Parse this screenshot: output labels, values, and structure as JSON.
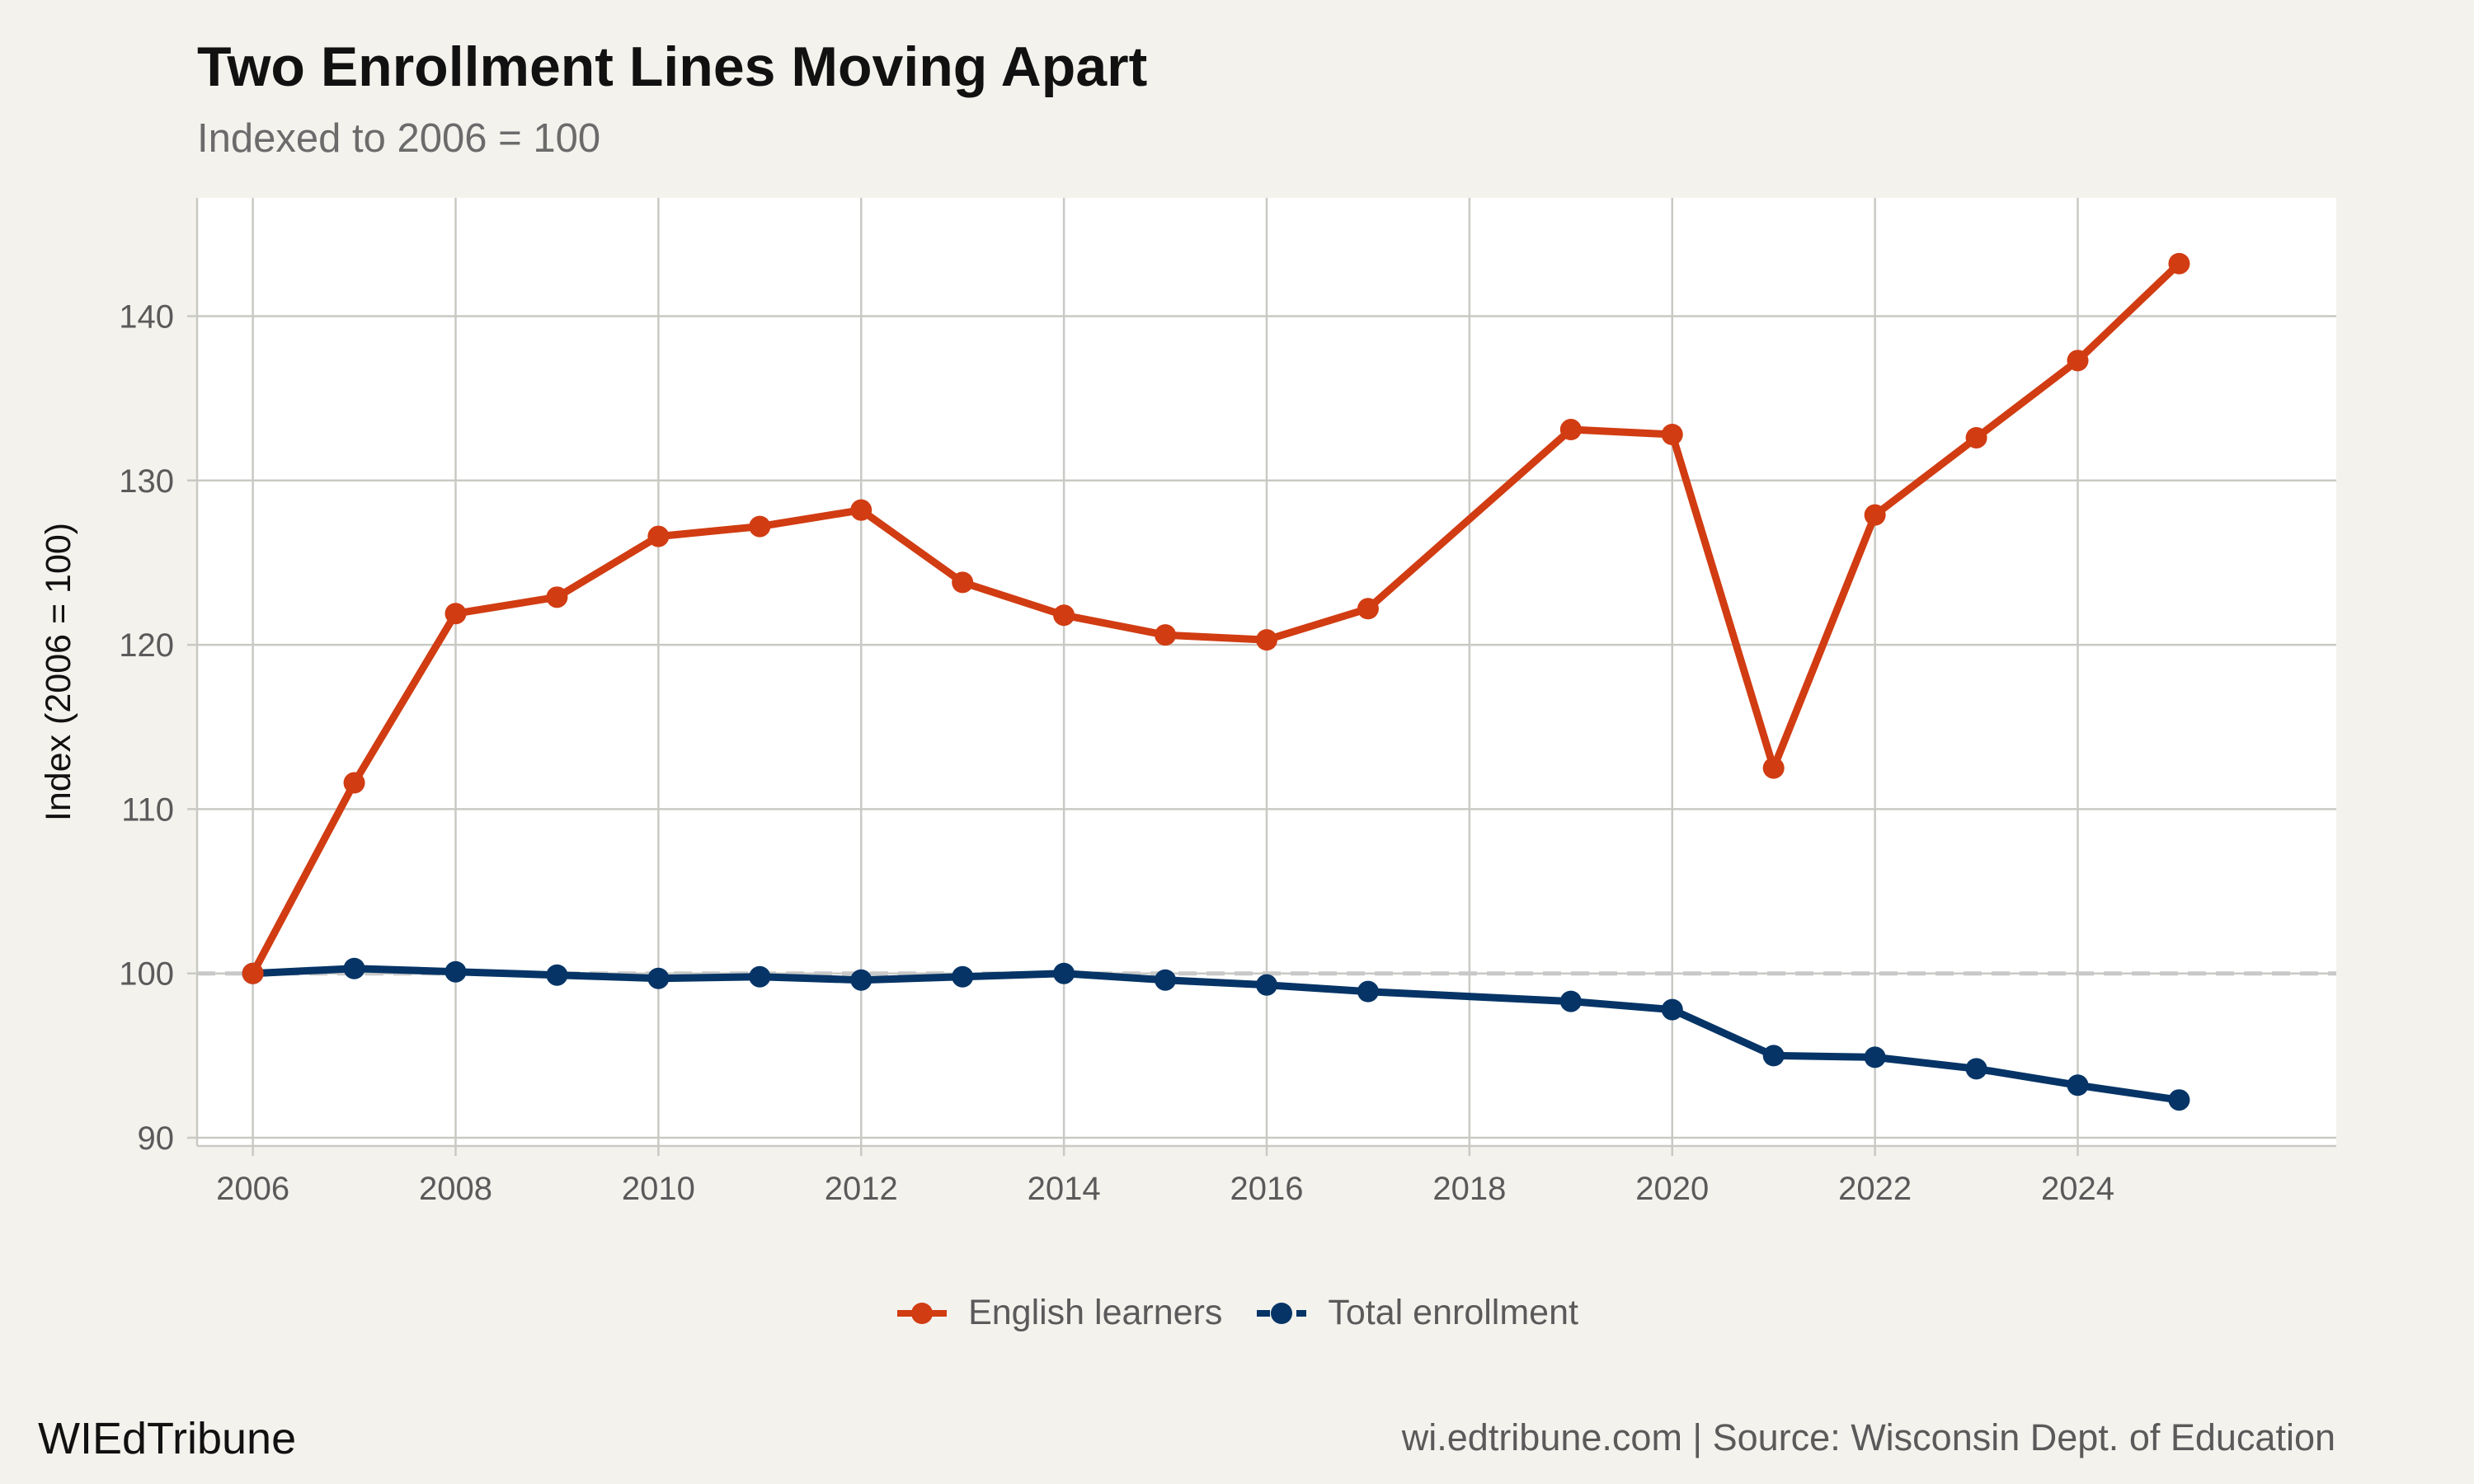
{
  "chart_data": {
    "type": "line",
    "title": "Two Enrollment Lines Moving Apart",
    "subtitle": "Indexed to 2006 = 100",
    "xlabel": "",
    "ylabel": "Index (2006 = 100)",
    "x": [
      2006,
      2007,
      2008,
      2009,
      2010,
      2011,
      2012,
      2013,
      2014,
      2015,
      2016,
      2017,
      2019,
      2020,
      2021,
      2022,
      2023,
      2024,
      2025
    ],
    "xlim": [
      2005.45,
      2026.55
    ],
    "ylim": [
      89.5,
      147.2
    ],
    "x_ticks": [
      2006,
      2008,
      2010,
      2012,
      2014,
      2016,
      2018,
      2020,
      2022,
      2024
    ],
    "y_ticks": [
      90,
      100,
      110,
      120,
      130,
      140
    ],
    "grid": true,
    "reference_line": {
      "y": 100,
      "style": "dashed",
      "color": "#c8c8c8"
    },
    "legend_position": "bottom",
    "series": [
      {
        "name": "English learners",
        "color": "#d13c12",
        "values": [
          100,
          111.6,
          121.9,
          122.9,
          126.6,
          127.2,
          128.2,
          123.8,
          121.8,
          120.6,
          120.3,
          122.2,
          133.1,
          132.8,
          112.5,
          127.9,
          132.6,
          137.3,
          143.2
        ]
      },
      {
        "name": "Total enrollment",
        "color": "#063466",
        "values": [
          100,
          100.3,
          100.1,
          99.9,
          99.7,
          99.8,
          99.6,
          99.8,
          100.0,
          99.6,
          99.3,
          98.9,
          98.3,
          97.8,
          95.0,
          94.9,
          94.2,
          93.2,
          92.3
        ]
      }
    ]
  },
  "footer": {
    "brand": "WIEdTribune",
    "source": "wi.edtribune.com | Source: Wisconsin Dept. of Education"
  }
}
